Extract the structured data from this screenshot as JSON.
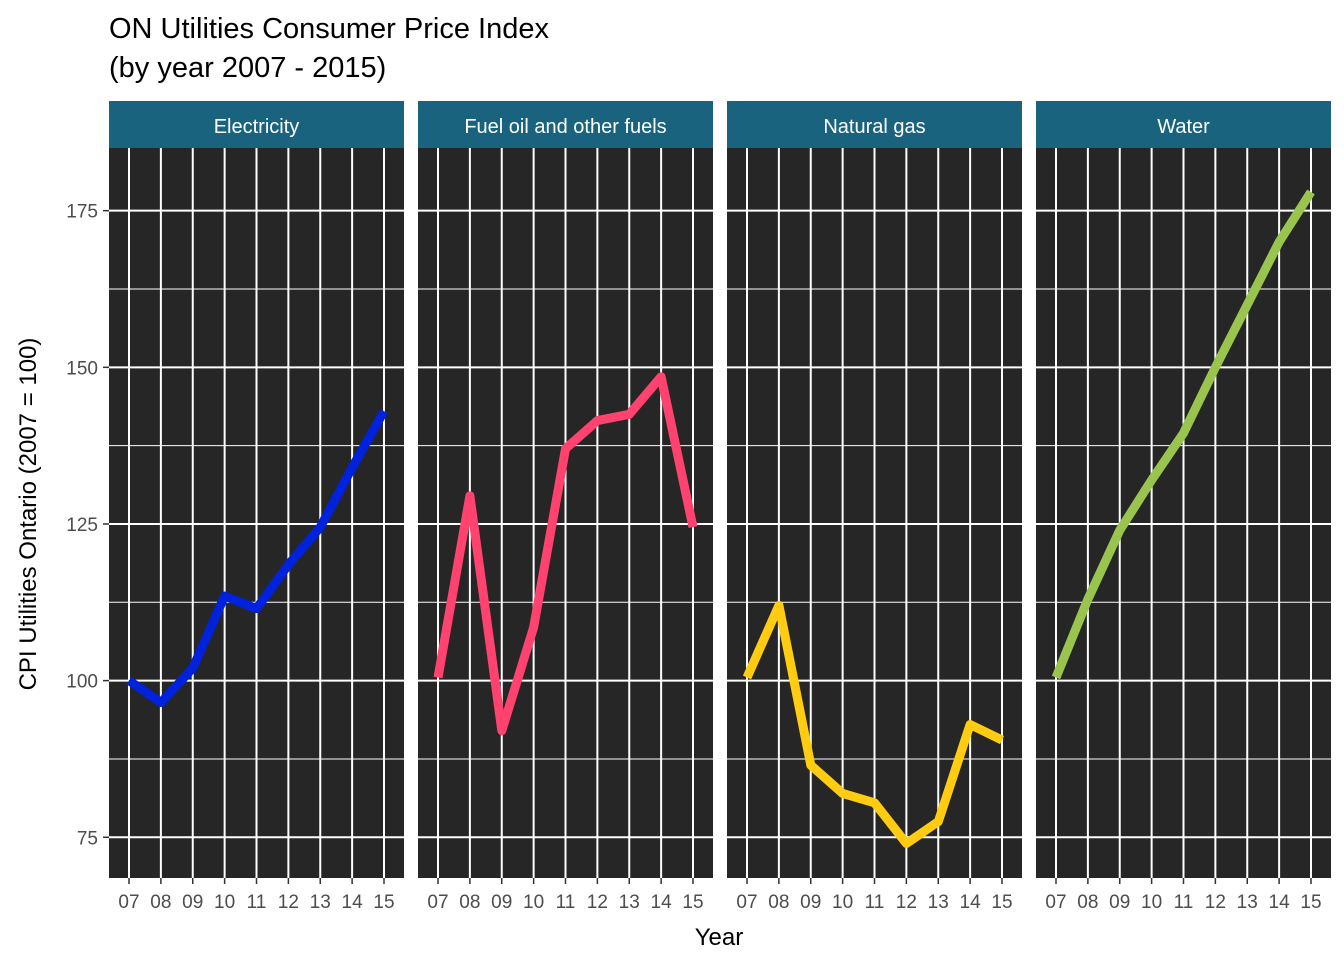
{
  "chart_data": {
    "type": "line",
    "title": "ON Utilities Consumer Price Index",
    "subtitle": "(by year 2007 - 2015)",
    "xlabel": "Year",
    "ylabel": "CPI Utilities Ontario (2007 = 100)",
    "x": [
      2007,
      2008,
      2009,
      2010,
      2011,
      2012,
      2013,
      2014,
      2015
    ],
    "x_tick_labels": [
      "07",
      "08",
      "09",
      "10",
      "11",
      "12",
      "13",
      "14",
      "15"
    ],
    "y_ticks": [
      75,
      100,
      125,
      150,
      175
    ],
    "ylim": [
      68.5,
      185
    ],
    "grid": true,
    "legend": "none",
    "strip_color": "#1a637f",
    "panel_color": "#262626",
    "grid_color": "#ffffff",
    "facets": [
      {
        "name": "Electricity",
        "color": "#0022dd",
        "values": [
          100,
          96.5,
          102,
          113.5,
          111.5,
          118.5,
          124.5,
          134,
          143
        ]
      },
      {
        "name": "Fuel oil and other fuels",
        "color": "#ff426e",
        "values": [
          100.5,
          129.5,
          92,
          108.5,
          137,
          141.5,
          142.5,
          148.5,
          124.5
        ]
      },
      {
        "name": "Natural gas",
        "color": "#ffcc11",
        "values": [
          100.5,
          112,
          86.5,
          82,
          80.5,
          74,
          77.5,
          93,
          90.5
        ]
      },
      {
        "name": "Water",
        "color": "#99c54f",
        "values": [
          100.5,
          113,
          124,
          132,
          139.5,
          150,
          160,
          170,
          178
        ]
      }
    ]
  }
}
